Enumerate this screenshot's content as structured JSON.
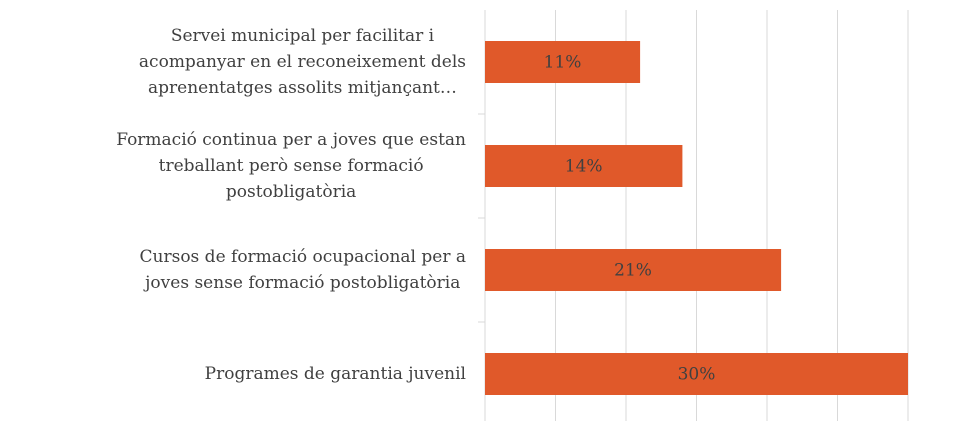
{
  "chart_data": {
    "type": "bar",
    "orientation": "horizontal",
    "categories": [
      "Servei municipal per facilitar i\nacompanyar en el reconeixement dels\naprenentatges assolits mitjançant…",
      "Formació continua per a joves que estan\ntreballant però sense formació\npostobligatòria",
      "Cursos de formació ocupacional per a\njoves sense formació postobligatòria",
      "Programes de garantia juvenil"
    ],
    "values": [
      11,
      14,
      21,
      30
    ],
    "value_labels": [
      "11%",
      "14%",
      "21%",
      "30%"
    ],
    "color": "#e0592a",
    "xlim": [
      0,
      30
    ],
    "xticks": [
      0,
      5,
      10,
      15,
      20,
      25,
      30
    ],
    "grid": true
  }
}
